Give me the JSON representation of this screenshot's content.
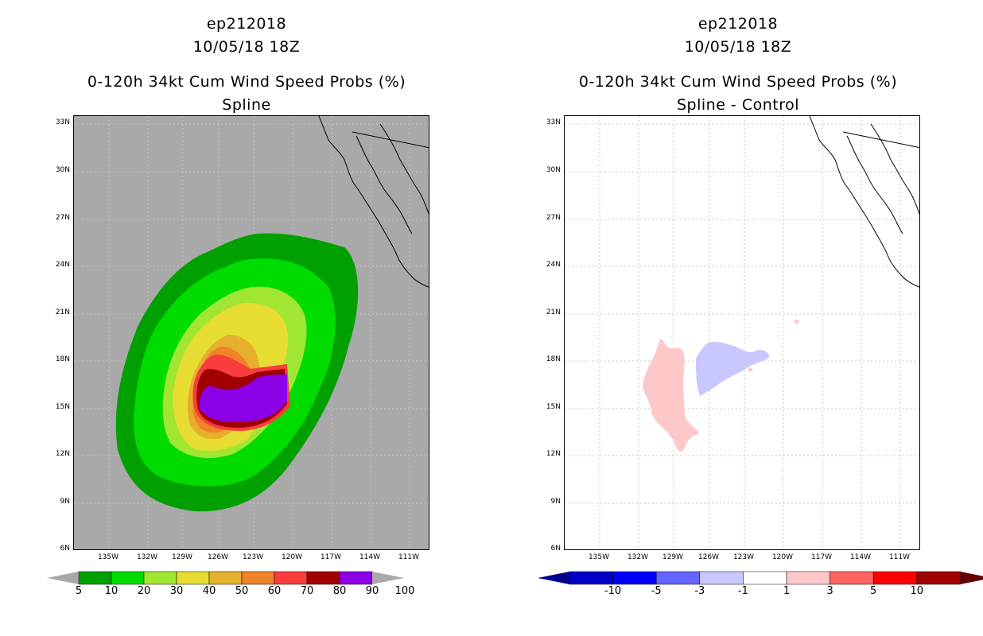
{
  "colors": {
    "land": "#a9a9a9",
    "coast": "#000000",
    "grid": "#b0b0b0",
    "prob_fills": [
      "#00a000",
      "#00dc00",
      "#a0e632",
      "#e6dc32",
      "#e6af2d",
      "#f08228",
      "#fa3c3c",
      "#a00000",
      "#8c00e6"
    ]
  },
  "left_panel": {
    "title_line1": "ep212018",
    "title_line2": "10/05/18 18Z",
    "title_line3": "0-120h 34kt Cum Wind Speed Probs (%)",
    "title_line4": "Spline"
  },
  "right_panel": {
    "title_line1": "ep212018",
    "title_line2": "10/05/18 18Z",
    "title_line3": "0-120h 34kt Cum Wind Speed Probs (%)",
    "title_line4": "Spline - Control"
  },
  "chart_data": [
    {
      "type": "contour",
      "title": "0-120h 34kt Cum Wind Speed Probs (%) Spline",
      "lat_ticks": [
        "33N",
        "30N",
        "27N",
        "24N",
        "21N",
        "18N",
        "15N",
        "12N",
        "9N",
        "6N"
      ],
      "lon_ticks": [
        "135W",
        "132W",
        "129W",
        "126W",
        "123W",
        "120W",
        "117W",
        "114W",
        "111W"
      ],
      "lat_range": [
        6,
        33.5
      ],
      "lon_range": [
        -137.3,
        -110.3
      ],
      "colorbar": {
        "labels": [
          "5",
          "10",
          "20",
          "30",
          "40",
          "50",
          "60",
          "70",
          "80",
          "90",
          "100"
        ],
        "colors": [
          "#00a000",
          "#00dc00",
          "#a0e632",
          "#e6dc32",
          "#e6af2d",
          "#f08228",
          "#fa3c3c",
          "#a00000",
          "#8c00e6"
        ]
      },
      "max_center": {
        "lat": 16.0,
        "lon": -122.5
      }
    },
    {
      "type": "contour",
      "title": "0-120h 34kt Cum Wind Speed Probs (%) Spline - Control",
      "lat_ticks": [
        "33N",
        "30N",
        "27N",
        "24N",
        "21N",
        "18N",
        "15N",
        "12N",
        "9N",
        "6N"
      ],
      "lon_ticks": [
        "135W",
        "132W",
        "129W",
        "126W",
        "123W",
        "120W",
        "117W",
        "114W",
        "111W"
      ],
      "lat_range": [
        6,
        33.5
      ],
      "lon_range": [
        -137.3,
        -110.3
      ],
      "colorbar": {
        "labels": [
          "-10",
          "-5",
          "-3",
          "-1",
          "1",
          "3",
          "5",
          "10"
        ],
        "colors": [
          "#0000c8",
          "#0000ff",
          "#6464ff",
          "#c8c8ff",
          "#ffffff",
          "#ffc8c8",
          "#ff6464",
          "#ff0000",
          "#a00000"
        ]
      }
    }
  ]
}
